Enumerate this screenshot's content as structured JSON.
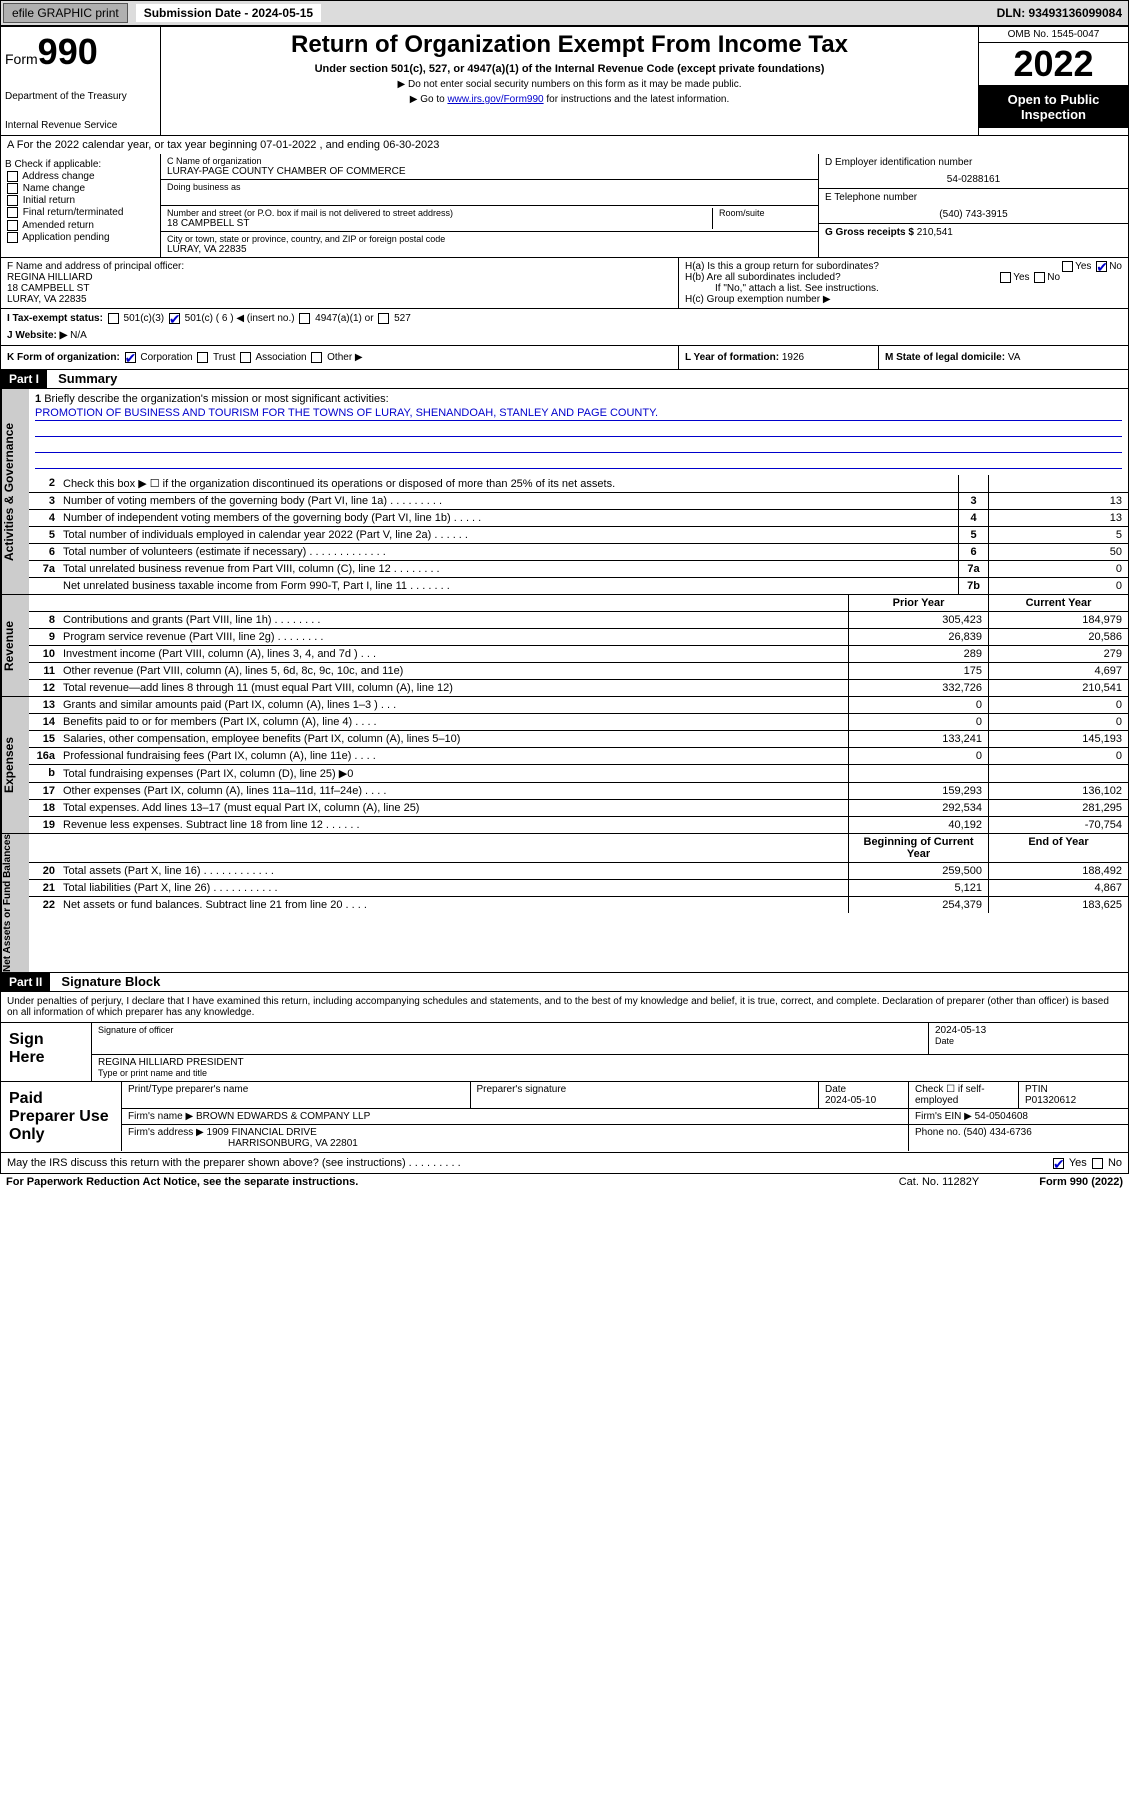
{
  "topbar": {
    "efile": "efile GRAPHIC print",
    "subdate_label": "Submission Date - 2024-05-15",
    "dln": "DLN: 93493136099084"
  },
  "header": {
    "form_label": "Form",
    "form_num": "990",
    "dept": "Department of the Treasury",
    "irs": "Internal Revenue Service",
    "title": "Return of Organization Exempt From Income Tax",
    "subtitle": "Under section 501(c), 527, or 4947(a)(1) of the Internal Revenue Code (except private foundations)",
    "note1": "▶ Do not enter social security numbers on this form as it may be made public.",
    "note2_pre": "▶ Go to ",
    "note2_link": "www.irs.gov/Form990",
    "note2_post": " for instructions and the latest information.",
    "omb": "OMB No. 1545-0047",
    "year": "2022",
    "open": "Open to Public Inspection"
  },
  "A": "A For the 2022 calendar year, or tax year beginning 07-01-2022 , and ending 06-30-2023",
  "B": {
    "label": "B Check if applicable:",
    "opts": [
      "Address change",
      "Name change",
      "Initial return",
      "Final return/terminated",
      "Amended return",
      "Application pending"
    ]
  },
  "C": {
    "name_label": "C Name of organization",
    "name": "LURAY-PAGE COUNTY CHAMBER OF COMMERCE",
    "dba_label": "Doing business as",
    "addr_label": "Number and street (or P.O. box if mail is not delivered to street address)",
    "room_label": "Room/suite",
    "addr": "18 CAMPBELL ST",
    "city_label": "City or town, state or province, country, and ZIP or foreign postal code",
    "city": "LURAY, VA  22835"
  },
  "D": {
    "label": "D Employer identification number",
    "val": "54-0288161"
  },
  "E": {
    "label": "E Telephone number",
    "val": "(540) 743-3915"
  },
  "G": {
    "label": "G Gross receipts $",
    "val": "210,541"
  },
  "F": {
    "label": "F Name and address of principal officer:",
    "name": "REGINA HILLIARD",
    "addr1": "18 CAMPBELL ST",
    "addr2": "LURAY, VA  22835"
  },
  "H": {
    "a": "H(a) Is this a group return for subordinates?",
    "b": "H(b) Are all subordinates included?",
    "note": "If \"No,\" attach a list. See instructions.",
    "c": "H(c) Group exemption number ▶",
    "yes": "Yes",
    "no": "No"
  },
  "I": {
    "label": "I   Tax-exempt status:",
    "o1": "501(c)(3)",
    "o2": "501(c) ( 6 ) ◀ (insert no.)",
    "o3": "4947(a)(1) or",
    "o4": "527"
  },
  "J": {
    "label": "J   Website: ▶",
    "val": "N/A"
  },
  "K": {
    "label": "K Form of organization:",
    "o1": "Corporation",
    "o2": "Trust",
    "o3": "Association",
    "o4": "Other ▶"
  },
  "L": {
    "label": "L Year of formation:",
    "val": "1926"
  },
  "M": {
    "label": "M State of legal domicile:",
    "val": "VA"
  },
  "part1": {
    "hdr": "Part I",
    "title": "Summary"
  },
  "mission": {
    "label": "Briefly describe the organization's mission or most significant activities:",
    "text": "PROMOTION OF BUSINESS AND TOURISM FOR THE TOWNS OF LURAY, SHENANDOAH, STANLEY AND PAGE COUNTY."
  },
  "lines_gov": [
    {
      "n": "2",
      "d": "Check this box ▶ ☐ if the organization discontinued its operations or disposed of more than 25% of its net assets.",
      "box": "",
      "v": ""
    },
    {
      "n": "3",
      "d": "Number of voting members of the governing body (Part VI, line 1a)  .   .   .   .   .   .   .   .   .",
      "box": "3",
      "v": "13"
    },
    {
      "n": "4",
      "d": "Number of independent voting members of the governing body (Part VI, line 1b)  .   .   .   .   .",
      "box": "4",
      "v": "13"
    },
    {
      "n": "5",
      "d": "Total number of individuals employed in calendar year 2022 (Part V, line 2a)  .   .   .   .   .   .",
      "box": "5",
      "v": "5"
    },
    {
      "n": "6",
      "d": "Total number of volunteers (estimate if necessary)  .   .   .   .   .   .   .   .   .   .   .   .   .",
      "box": "6",
      "v": "50"
    },
    {
      "n": "7a",
      "d": "Total unrelated business revenue from Part VIII, column (C), line 12  .   .   .   .   .   .   .   .",
      "box": "7a",
      "v": "0"
    },
    {
      "n": "",
      "d": "Net unrelated business taxable income from Form 990-T, Part I, line 11  .   .   .   .   .   .   .",
      "box": "7b",
      "v": "0"
    }
  ],
  "col_hdrs": {
    "py": "Prior Year",
    "cy": "Current Year"
  },
  "lines_rev": [
    {
      "n": "8",
      "d": "Contributions and grants (Part VIII, line 1h)  .   .   .   .   .   .   .   .",
      "py": "305,423",
      "cy": "184,979"
    },
    {
      "n": "9",
      "d": "Program service revenue (Part VIII, line 2g)  .   .   .   .   .   .   .   .",
      "py": "26,839",
      "cy": "20,586"
    },
    {
      "n": "10",
      "d": "Investment income (Part VIII, column (A), lines 3, 4, and 7d )  .   .   .",
      "py": "289",
      "cy": "279"
    },
    {
      "n": "11",
      "d": "Other revenue (Part VIII, column (A), lines 5, 6d, 8c, 9c, 10c, and 11e)",
      "py": "175",
      "cy": "4,697"
    },
    {
      "n": "12",
      "d": "Total revenue—add lines 8 through 11 (must equal Part VIII, column (A), line 12)",
      "py": "332,726",
      "cy": "210,541"
    }
  ],
  "lines_exp": [
    {
      "n": "13",
      "d": "Grants and similar amounts paid (Part IX, column (A), lines 1–3 )  .   .   .",
      "py": "0",
      "cy": "0"
    },
    {
      "n": "14",
      "d": "Benefits paid to or for members (Part IX, column (A), line 4)  .   .   .   .",
      "py": "0",
      "cy": "0"
    },
    {
      "n": "15",
      "d": "Salaries, other compensation, employee benefits (Part IX, column (A), lines 5–10)",
      "py": "133,241",
      "cy": "145,193"
    },
    {
      "n": "16a",
      "d": "Professional fundraising fees (Part IX, column (A), line 11e)  .   .   .   .",
      "py": "0",
      "cy": "0"
    },
    {
      "n": "b",
      "d": "Total fundraising expenses (Part IX, column (D), line 25) ▶0",
      "py": "",
      "cy": ""
    },
    {
      "n": "17",
      "d": "Other expenses (Part IX, column (A), lines 11a–11d, 11f–24e)  .   .   .   .",
      "py": "159,293",
      "cy": "136,102"
    },
    {
      "n": "18",
      "d": "Total expenses. Add lines 13–17 (must equal Part IX, column (A), line 25)",
      "py": "292,534",
      "cy": "281,295"
    },
    {
      "n": "19",
      "d": "Revenue less expenses. Subtract line 18 from line 12  .   .   .   .   .   .",
      "py": "40,192",
      "cy": "-70,754"
    }
  ],
  "col_hdrs2": {
    "boy": "Beginning of Current Year",
    "eoy": "End of Year"
  },
  "lines_net": [
    {
      "n": "20",
      "d": "Total assets (Part X, line 16)  .   .   .   .   .   .   .   .   .   .   .   .",
      "py": "259,500",
      "cy": "188,492"
    },
    {
      "n": "21",
      "d": "Total liabilities (Part X, line 26)  .   .   .   .   .   .   .   .   .   .   .",
      "py": "5,121",
      "cy": "4,867"
    },
    {
      "n": "22",
      "d": "Net assets or fund balances. Subtract line 21 from line 20  .   .   .   .",
      "py": "254,379",
      "cy": "183,625"
    }
  ],
  "part2": {
    "hdr": "Part II",
    "title": "Signature Block"
  },
  "sig": {
    "decl": "Under penalties of perjury, I declare that I have examined this return, including accompanying schedules and statements, and to the best of my knowledge and belief, it is true, correct, and complete. Declaration of preparer (other than officer) is based on all information of which preparer has any knowledge.",
    "sign_here": "Sign Here",
    "sig_officer": "Signature of officer",
    "date": "2024-05-13",
    "date_label": "Date",
    "name": "REGINA HILLIARD  PRESIDENT",
    "name_label": "Type or print name and title"
  },
  "prep": {
    "label": "Paid Preparer Use Only",
    "h1": "Print/Type preparer's name",
    "h2": "Preparer's signature",
    "h3": "Date",
    "h4": "Check ☐ if self-employed",
    "h5": "PTIN",
    "date": "2024-05-10",
    "ptin": "P01320612",
    "firm_label": "Firm's name  ▶",
    "firm": "BROWN EDWARDS & COMPANY LLP",
    "ein_label": "Firm's EIN ▶",
    "ein": "54-0504608",
    "addr_label": "Firm's address ▶",
    "addr1": "1909 FINANCIAL DRIVE",
    "addr2": "HARRISONBURG, VA  22801",
    "phone_label": "Phone no.",
    "phone": "(540) 434-6736"
  },
  "footer": {
    "discuss": "May the IRS discuss this return with the preparer shown above? (see instructions)  .   .   .   .   .   .   .   .   .",
    "yes": "Yes",
    "no": "No",
    "pra": "For Paperwork Reduction Act Notice, see the separate instructions.",
    "cat": "Cat. No. 11282Y",
    "form": "Form 990 (2022)"
  }
}
